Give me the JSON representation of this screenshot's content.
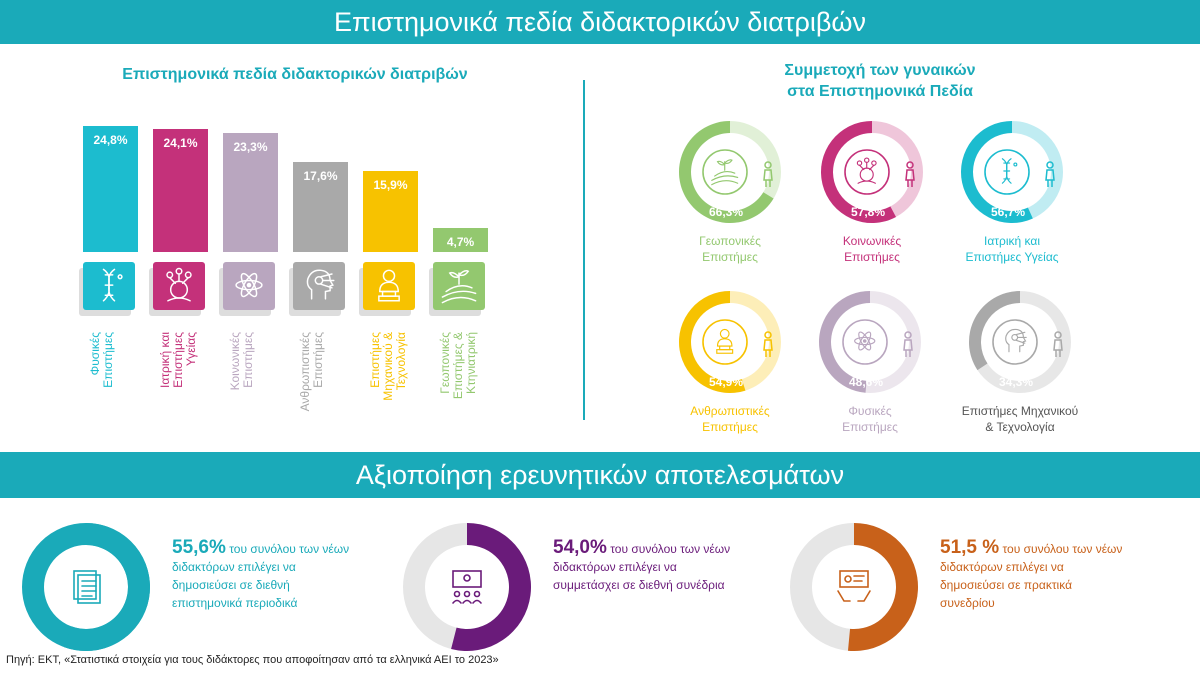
{
  "header": {
    "title": "Επιστημονικά πεδία διδακτορικών διατριβών"
  },
  "middle_band": {
    "title": "Αξιοποίηση ερευνητικών αποτελεσμάτων"
  },
  "source": "Πηγή: ΕΚΤ, «Στατιστικά στοιχεία για τους διδάκτορες που αποφοίτησαν από τα ελληνικά ΑΕΙ το 2023»",
  "chart_data": [
    {
      "type": "bar",
      "title": "Επιστημονικά πεδία διδακτορικών διατριβών",
      "categories": [
        "Φυσικές Επιστήμες",
        "Ιατρική και Επιστήμες Υγείας",
        "Κοινωνικές Επιστήμες",
        "Ανθρωπιστικές Επιστήμες",
        "Επιστήμες Μηχανικού & Τεχνολογία",
        "Γεωπονικές Επιστήμες & Κτηνιατρική"
      ],
      "label_lines": [
        [
          "Φυσικές",
          "Επιστήμες"
        ],
        [
          "Ιατρική και",
          "Επιστήμες",
          "Υγείας"
        ],
        [
          "Κοινωνικές",
          "Επιστήμες"
        ],
        [
          "Ανθρωπιστικές",
          "Επιστήμες"
        ],
        [
          "Επιστήμες",
          "Μηχανικού &",
          "Τεχνολογία"
        ],
        [
          "Γεωπονικές",
          "Επιστήμες &",
          "Κτηνιατρική"
        ]
      ],
      "values": [
        24.8,
        24.1,
        23.3,
        17.6,
        15.9,
        4.7
      ],
      "value_labels": [
        "24,8%",
        "24,1%",
        "23,3%",
        "17,6%",
        "15,9%",
        "4,7%"
      ],
      "colors": [
        "#1CBCCF",
        "#C4317A",
        "#B9A6BF",
        "#A9A9A9",
        "#F7C200",
        "#93C86F"
      ],
      "icons": [
        "dna-icon",
        "network-people-icon",
        "atom-icon",
        "head-gears-icon",
        "bust-statue-icon",
        "field-plant-icon"
      ]
    },
    {
      "type": "pie",
      "title": "Συμμετοχή των γυναικών στα Επιστημονικά Πεδία",
      "title_lines": [
        "Συμμετοχή των γυναικών",
        "στα Επιστημονικά Πεδία"
      ],
      "items": [
        {
          "label_lines": [
            "Γεωπονικές",
            "Επιστήμες"
          ],
          "value": 66.3,
          "value_label": "66,3%",
          "color": "#93C86F",
          "icon": "field-plant-icon"
        },
        {
          "label_lines": [
            "Κοινωνικές",
            "Επιστήμες"
          ],
          "value": 57.8,
          "value_label": "57,8%",
          "color": "#C4317A",
          "icon": "network-people-icon"
        },
        {
          "label_lines": [
            "Ιατρική και",
            "Επιστήμες Υγείας"
          ],
          "value": 56.7,
          "value_label": "56,7%",
          "color": "#1CBCCF",
          "icon": "dna-icon"
        },
        {
          "label_lines": [
            "Ανθρωπιστικές",
            "Επιστήμες"
          ],
          "value": 54.9,
          "value_label": "54,9%",
          "color": "#F7C200",
          "icon": "bust-statue-icon"
        },
        {
          "label_lines": [
            "Φυσικές",
            "Επιστήμες"
          ],
          "value": 48.6,
          "value_label": "48,6%",
          "color": "#B9A6BF",
          "icon": "atom-icon"
        },
        {
          "label_lines": [
            "Επιστήμες Μηχανικού",
            "& Τεχνολογία"
          ],
          "value": 34.3,
          "value_label": "34,3%",
          "color": "#A9A9A9",
          "icon": "head-gears-icon"
        }
      ]
    },
    {
      "type": "pie",
      "items": [
        {
          "value": 55.6,
          "pct_label": "55,6%",
          "text_first": " του συνόλου των νέων",
          "text_rest": [
            "διδακτόρων επιλέγει να",
            "δημοσιεύσει σε διεθνή",
            "επιστημονικά περιοδικά"
          ],
          "color": "#1AAAB9",
          "icon": "documents-icon"
        },
        {
          "value": 54.0,
          "pct_label": "54,0%",
          "text_first": " του συνόλου των νέων",
          "text_rest": [
            "διδακτόρων επιλέγει να",
            "συμμετάσχει σε διεθνή συνέδρια"
          ],
          "color": "#6A1B7A",
          "icon": "conference-icon"
        },
        {
          "value": 51.5,
          "pct_label": "51,5 %",
          "text_first": " του συνόλου των νέων",
          "text_rest": [
            "διδακτόρων επιλέγει να",
            "δημοσιεύσει σε πρακτικά",
            "συνεδρίου"
          ],
          "color": "#C8611A",
          "icon": "presentation-icon"
        }
      ]
    }
  ]
}
